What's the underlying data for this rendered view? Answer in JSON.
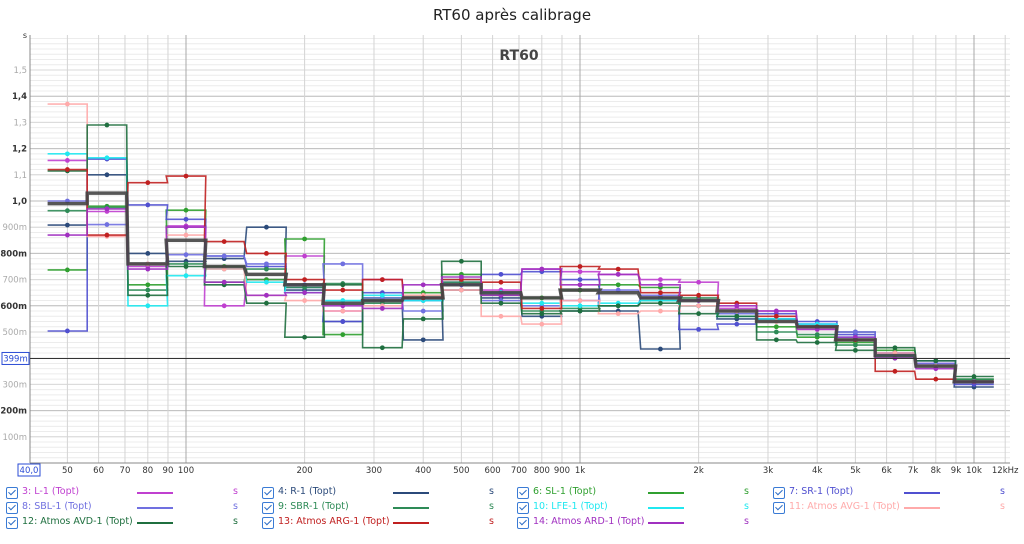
{
  "title": "RT60 après calibrage",
  "chart_data": {
    "type": "line",
    "title": "RT60 après calibrage",
    "inner_label": "RT60",
    "ylabel": "s",
    "xlabel": "kHz",
    "xscale": "log",
    "xlim": [
      40,
      12000
    ],
    "ylim": [
      0,
      1.63
    ],
    "cursor": {
      "y_label": "399m",
      "y_value": 0.399,
      "x_label": "40,0"
    },
    "y_ticks": [
      {
        "v": 0.1,
        "label": "100m",
        "bold": false
      },
      {
        "v": 0.2,
        "label": "200m",
        "bold": true
      },
      {
        "v": 0.3,
        "label": "300m",
        "bold": false
      },
      {
        "v": 0.5,
        "label": "500m",
        "bold": false
      },
      {
        "v": 0.6,
        "label": "600m",
        "bold": true
      },
      {
        "v": 0.7,
        "label": "700m",
        "bold": false
      },
      {
        "v": 0.8,
        "label": "800m",
        "bold": true
      },
      {
        "v": 0.9,
        "label": "900m",
        "bold": false
      },
      {
        "v": 1.0,
        "label": "1,0",
        "bold": true
      },
      {
        "v": 1.1,
        "label": "1,1",
        "bold": false
      },
      {
        "v": 1.2,
        "label": "1,2",
        "bold": true
      },
      {
        "v": 1.3,
        "label": "1,3",
        "bold": false
      },
      {
        "v": 1.4,
        "label": "1,4",
        "bold": true
      },
      {
        "v": 1.5,
        "label": "1,5",
        "bold": false
      }
    ],
    "x_ticks": [
      {
        "v": 50,
        "label": "50"
      },
      {
        "v": 60,
        "label": "60"
      },
      {
        "v": 70,
        "label": "70"
      },
      {
        "v": 80,
        "label": "80"
      },
      {
        "v": 90,
        "label": "90"
      },
      {
        "v": 100,
        "label": "100"
      },
      {
        "v": 200,
        "label": "200"
      },
      {
        "v": 300,
        "label": "300"
      },
      {
        "v": 400,
        "label": "400"
      },
      {
        "v": 500,
        "label": "500"
      },
      {
        "v": 600,
        "label": "600"
      },
      {
        "v": 700,
        "label": "700"
      },
      {
        "v": 800,
        "label": "800"
      },
      {
        "v": 900,
        "label": "900"
      },
      {
        "v": 1000,
        "label": "1k"
      },
      {
        "v": 2000,
        "label": "2k"
      },
      {
        "v": 3000,
        "label": "3k"
      },
      {
        "v": 4000,
        "label": "4k"
      },
      {
        "v": 5000,
        "label": "5k"
      },
      {
        "v": 6000,
        "label": "6k"
      },
      {
        "v": 7000,
        "label": "7k"
      },
      {
        "v": 8000,
        "label": "8k"
      },
      {
        "v": 9000,
        "label": "9k"
      },
      {
        "v": 10000,
        "label": "10k"
      },
      {
        "v": 12000,
        "label": "12kHz"
      }
    ],
    "x": [
      50,
      63,
      80,
      100,
      125,
      160,
      200,
      250,
      315,
      400,
      500,
      630,
      800,
      1000,
      1250,
      1600,
      2000,
      2500,
      3150,
      4000,
      5000,
      6300,
      8000,
      10000
    ],
    "series": [
      {
        "name": "3: L-1 (Topt)",
        "unit": "s",
        "color": "#c040d0",
        "values": [
          1.155,
          0.96,
          0.75,
          0.905,
          0.6,
          0.7,
          0.79,
          0.58,
          0.7,
          0.63,
          0.68,
          0.66,
          0.74,
          0.73,
          0.72,
          0.7,
          0.69,
          0.59,
          0.58,
          0.52,
          0.47,
          0.42,
          0.38,
          0.31
        ]
      },
      {
        "name": "4: R-1 (Topt)",
        "unit": "s",
        "color": "#2b4a7a",
        "values": [
          0.908,
          1.1,
          0.8,
          0.77,
          0.78,
          0.9,
          0.66,
          0.54,
          0.62,
          0.47,
          0.66,
          0.63,
          0.56,
          0.58,
          0.58,
          0.435,
          0.6,
          0.55,
          0.55,
          0.52,
          0.5,
          0.41,
          0.37,
          0.29
        ]
      },
      {
        "name": "6: SL-1 (Topt)",
        "unit": "s",
        "color": "#30a030",
        "values": [
          0.737,
          0.98,
          0.68,
          0.965,
          0.75,
          0.7,
          0.855,
          0.49,
          0.63,
          0.65,
          0.72,
          0.64,
          0.63,
          0.66,
          0.68,
          0.67,
          0.6,
          0.58,
          0.52,
          0.48,
          0.46,
          0.43,
          0.37,
          0.32
        ]
      },
      {
        "name": "7: SR-1 (Topt)",
        "unit": "s",
        "color": "#5050d0",
        "values": [
          0.504,
          1.16,
          0.985,
          0.93,
          0.79,
          0.75,
          0.68,
          0.54,
          0.65,
          0.62,
          0.68,
          0.72,
          0.73,
          0.7,
          0.6,
          0.63,
          0.51,
          0.53,
          0.57,
          0.54,
          0.49,
          0.42,
          0.39,
          0.3
        ]
      },
      {
        "name": "8: SBL-1 (Topt)",
        "unit": "s",
        "color": "#7070e0",
        "values": [
          1.0,
          0.91,
          0.76,
          0.795,
          0.79,
          0.76,
          0.67,
          0.76,
          0.63,
          0.58,
          0.69,
          0.62,
          0.6,
          0.62,
          0.66,
          0.64,
          0.62,
          0.57,
          0.55,
          0.53,
          0.5,
          0.41,
          0.38,
          0.31
        ]
      },
      {
        "name": "9: SBR-1 (Topt)",
        "unit": "s",
        "color": "#2e8b57",
        "values": [
          0.963,
          0.975,
          0.66,
          0.76,
          0.69,
          0.74,
          0.67,
          0.685,
          0.61,
          0.64,
          0.69,
          0.65,
          0.58,
          0.59,
          0.6,
          0.62,
          0.63,
          0.56,
          0.5,
          0.49,
          0.45,
          0.4,
          0.37,
          0.32
        ]
      },
      {
        "name": "10: LFE-1 (Topt)",
        "unit": "s",
        "color": "#20e8f0",
        "values": [
          1.18,
          1.165,
          0.6,
          0.715,
          0.74,
          0.69,
          0.65,
          0.62,
          0.64,
          0.62,
          0.7,
          0.65,
          0.61,
          0.6,
          0.61,
          0.62,
          0.6,
          0.56,
          0.55,
          0.53,
          0.48,
          0.41,
          0.37,
          0.31
        ]
      },
      {
        "name": "11: Atmos AVG-1 (Topt)",
        "unit": "s",
        "color": "#ffaaaa",
        "values": [
          1.37,
          0.865,
          0.76,
          0.87,
          0.74,
          0.64,
          0.62,
          0.58,
          0.6,
          0.64,
          0.66,
          0.56,
          0.53,
          0.62,
          0.57,
          0.58,
          0.6,
          0.58,
          0.54,
          0.51,
          0.47,
          0.42,
          0.37,
          0.31
        ]
      },
      {
        "name": "12: Atmos AVD-1 (Topt)",
        "unit": "s",
        "color": "#1f6f3f",
        "values": [
          1.115,
          1.29,
          0.64,
          0.75,
          0.68,
          0.61,
          0.48,
          0.68,
          0.44,
          0.55,
          0.77,
          0.61,
          0.57,
          0.58,
          0.6,
          0.61,
          0.57,
          0.56,
          0.47,
          0.46,
          0.43,
          0.44,
          0.39,
          0.33
        ]
      },
      {
        "name": "13: Atmos ARG-1 (Topt)",
        "unit": "s",
        "color": "#c02020",
        "values": [
          1.12,
          0.87,
          1.07,
          1.095,
          0.845,
          0.8,
          0.7,
          0.66,
          0.7,
          0.63,
          0.7,
          0.69,
          0.59,
          0.75,
          0.74,
          0.65,
          0.64,
          0.61,
          0.56,
          0.52,
          0.47,
          0.35,
          0.32,
          0.31
        ]
      },
      {
        "name": "14: Atmos ARD-1 (Topt)",
        "unit": "s",
        "color": "#a030c0",
        "values": [
          0.87,
          0.97,
          0.74,
          0.9,
          0.69,
          0.64,
          0.65,
          0.6,
          0.59,
          0.68,
          0.71,
          0.64,
          0.74,
          0.68,
          0.72,
          0.68,
          0.62,
          0.6,
          0.58,
          0.51,
          0.48,
          0.4,
          0.36,
          0.31
        ]
      }
    ],
    "average": {
      "color": "#444444",
      "values": [
        0.99,
        1.03,
        0.76,
        0.85,
        0.75,
        0.72,
        0.68,
        0.61,
        0.62,
        0.63,
        0.68,
        0.65,
        0.63,
        0.66,
        0.65,
        0.63,
        0.62,
        0.58,
        0.54,
        0.52,
        0.47,
        0.41,
        0.37,
        0.31
      ]
    },
    "grid": true,
    "legend_position": "bottom"
  }
}
